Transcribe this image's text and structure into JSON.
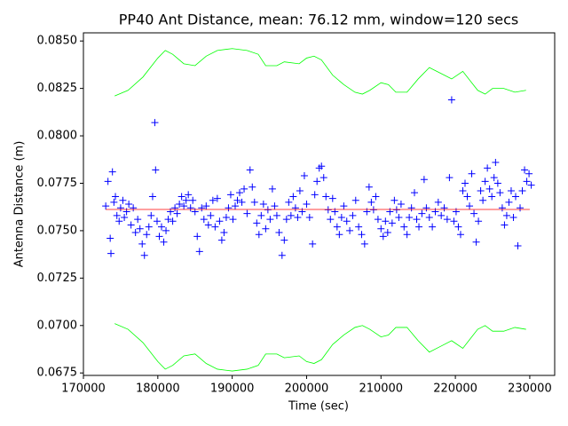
{
  "chart_data": {
    "type": "scatter",
    "title": "PP40 Ant Distance, mean: 76.12 mm, window=120 secs",
    "xlabel": "Time (sec)",
    "ylabel": "Antenna Distance (m)",
    "xlim": [
      170000,
      233350
    ],
    "ylim": [
      0.06737,
      0.08543
    ],
    "xticks": [
      170000,
      180000,
      190000,
      200000,
      210000,
      220000,
      230000
    ],
    "yticks": [
      0.0675,
      {
        "value": 0.07,
        "label": "0.0700"
      },
      0.0725,
      {
        "value": 0.075,
        "label": "0.0750"
      },
      0.0775,
      {
        "value": 0.08,
        "label": "0.0800"
      },
      0.0825,
      {
        "value": 0.085,
        "label": "0.0850"
      }
    ],
    "series": [
      {
        "color": "#0000ff",
        "marker": "+",
        "x": [
          173000,
          173300,
          173600,
          173700,
          173900,
          174100,
          174300,
          174500,
          174800,
          175000,
          175300,
          175500,
          175800,
          176100,
          176400,
          176700,
          177000,
          177300,
          177600,
          177900,
          178200,
          178500,
          178800,
          179100,
          179300,
          179600,
          179700,
          179900,
          180200,
          180500,
          180800,
          181100,
          181400,
          181700,
          182000,
          182300,
          182600,
          182900,
          183200,
          183500,
          183800,
          184100,
          184400,
          184700,
          185000,
          185300,
          185600,
          185900,
          186200,
          186500,
          186800,
          187100,
          187400,
          187700,
          188000,
          188300,
          188600,
          188900,
          189200,
          189500,
          189800,
          190100,
          190400,
          190700,
          191000,
          191300,
          191600,
          192000,
          192400,
          192700,
          193000,
          193300,
          193600,
          193900,
          194200,
          194500,
          194800,
          195100,
          195400,
          195700,
          196000,
          196300,
          196700,
          197000,
          197300,
          197600,
          197900,
          198200,
          198500,
          198800,
          199100,
          199400,
          199700,
          200000,
          200400,
          200800,
          201100,
          201400,
          201700,
          202000,
          202300,
          202600,
          202900,
          203200,
          203500,
          203800,
          204100,
          204400,
          204700,
          205000,
          205400,
          205800,
          206200,
          206600,
          207000,
          207400,
          207800,
          208100,
          208400,
          208700,
          209000,
          209300,
          209600,
          210000,
          210300,
          210600,
          210900,
          211200,
          211500,
          211800,
          212100,
          212400,
          212700,
          213100,
          213500,
          213800,
          214100,
          214500,
          214800,
          215100,
          215500,
          215800,
          216100,
          216500,
          216900,
          217300,
          217700,
          218100,
          218500,
          218900,
          219200,
          219500,
          219800,
          220100,
          220400,
          220700,
          221000,
          221300,
          221600,
          221900,
          222200,
          222500,
          222800,
          223100,
          223400,
          223700,
          224000,
          224300,
          224600,
          224900,
          225200,
          225400,
          225700,
          226000,
          226300,
          226600,
          226900,
          227200,
          227500,
          227800,
          228100,
          228400,
          228700,
          229000,
          229300,
          229600,
          229900,
          230200
        ],
        "values": [
          0.0763,
          0.0776,
          0.0746,
          0.0738,
          0.0781,
          0.0765,
          0.0768,
          0.0758,
          0.0755,
          0.0762,
          0.0766,
          0.0757,
          0.076,
          0.0764,
          0.0753,
          0.0762,
          0.0749,
          0.0756,
          0.0751,
          0.0743,
          0.0737,
          0.0748,
          0.0752,
          0.0758,
          0.0768,
          0.0807,
          0.0782,
          0.0755,
          0.0747,
          0.0752,
          0.0744,
          0.075,
          0.0756,
          0.076,
          0.0755,
          0.0762,
          0.0759,
          0.0764,
          0.0768,
          0.0763,
          0.0766,
          0.0769,
          0.0762,
          0.0766,
          0.076,
          0.0747,
          0.0739,
          0.0762,
          0.0756,
          0.0763,
          0.0753,
          0.0758,
          0.0766,
          0.0752,
          0.0767,
          0.0755,
          0.0745,
          0.0749,
          0.0757,
          0.0762,
          0.0769,
          0.0756,
          0.0763,
          0.0766,
          0.077,
          0.0765,
          0.0772,
          0.0759,
          0.0782,
          0.0773,
          0.0765,
          0.0754,
          0.0748,
          0.0758,
          0.0764,
          0.0751,
          0.0761,
          0.0756,
          0.0772,
          0.0763,
          0.0758,
          0.0749,
          0.0737,
          0.0745,
          0.0756,
          0.0765,
          0.0758,
          0.0768,
          0.0762,
          0.0757,
          0.0771,
          0.076,
          0.0779,
          0.0764,
          0.0757,
          0.0743,
          0.0769,
          0.0776,
          0.0783,
          0.0784,
          0.0778,
          0.0768,
          0.0761,
          0.0756,
          0.0767,
          0.076,
          0.0752,
          0.0748,
          0.0757,
          0.0763,
          0.0755,
          0.075,
          0.0758,
          0.0766,
          0.0752,
          0.0748,
          0.0743,
          0.076,
          0.0773,
          0.0765,
          0.0761,
          0.0768,
          0.0756,
          0.0751,
          0.0747,
          0.0755,
          0.0749,
          0.076,
          0.0754,
          0.0766,
          0.0761,
          0.0757,
          0.0764,
          0.0752,
          0.0748,
          0.0757,
          0.0762,
          0.077,
          0.0756,
          0.0752,
          0.0759,
          0.0777,
          0.0762,
          0.0757,
          0.0752,
          0.076,
          0.0765,
          0.0758,
          0.0762,
          0.0756,
          0.0778,
          0.0819,
          0.0755,
          0.076,
          0.0752,
          0.0748,
          0.0771,
          0.0775,
          0.0768,
          0.0763,
          0.078,
          0.0759,
          0.0744,
          0.0755,
          0.0771,
          0.0766,
          0.0776,
          0.0783,
          0.0772,
          0.0768,
          0.0778,
          0.0786,
          0.0775,
          0.077,
          0.0762,
          0.0753,
          0.0758,
          0.0765,
          0.0771,
          0.0757,
          0.0768,
          0.0742,
          0.0762,
          0.0771,
          0.0782,
          0.0776,
          0.078,
          0.0774
        ]
      },
      {
        "color": "#ff0000",
        "x": [
          173000,
          230000
        ],
        "values": [
          0.07612,
          0.07612
        ]
      },
      {
        "color": "#00ff00",
        "x": [
          174200,
          176000,
          178000,
          180000,
          181000,
          182000,
          183500,
          185000,
          186500,
          188000,
          190000,
          192000,
          193500,
          194500,
          196000,
          197000,
          199000,
          200000,
          201000,
          202000,
          203500,
          205000,
          206500,
          207500,
          208500,
          210000,
          211000,
          212000,
          213500,
          215000,
          216500,
          218000,
          219500,
          221000,
          222000,
          223000,
          224000,
          225000,
          226500,
          228000,
          229500
        ],
        "values": [
          0.0821,
          0.0824,
          0.0831,
          0.0841,
          0.0845,
          0.0843,
          0.0838,
          0.0837,
          0.0842,
          0.0845,
          0.0846,
          0.0845,
          0.0843,
          0.0837,
          0.0837,
          0.0839,
          0.0838,
          0.0841,
          0.0842,
          0.084,
          0.0832,
          0.0827,
          0.0823,
          0.0822,
          0.0824,
          0.0828,
          0.0827,
          0.0823,
          0.0823,
          0.083,
          0.0836,
          0.0833,
          0.083,
          0.0834,
          0.0829,
          0.0824,
          0.0822,
          0.0825,
          0.0825,
          0.0823,
          0.0824
        ]
      },
      {
        "color": "#00ff00",
        "x": [
          174200,
          176000,
          178000,
          180000,
          181000,
          182000,
          183500,
          185000,
          186500,
          188000,
          190000,
          192000,
          193500,
          194500,
          196000,
          197000,
          199000,
          200000,
          201000,
          202000,
          203500,
          205000,
          206500,
          207500,
          208500,
          210000,
          211000,
          212000,
          213500,
          215000,
          216500,
          218000,
          219500,
          221000,
          222000,
          223000,
          224000,
          225000,
          226500,
          228000,
          229500
        ],
        "values": [
          0.0701,
          0.0698,
          0.0691,
          0.0681,
          0.0677,
          0.0679,
          0.0684,
          0.0685,
          0.068,
          0.0677,
          0.0676,
          0.0677,
          0.0679,
          0.0685,
          0.0685,
          0.0683,
          0.0684,
          0.0681,
          0.068,
          0.0682,
          0.069,
          0.0695,
          0.0699,
          0.07,
          0.0698,
          0.0694,
          0.0695,
          0.0699,
          0.0699,
          0.0692,
          0.0686,
          0.0689,
          0.0692,
          0.0688,
          0.0693,
          0.0698,
          0.07,
          0.0697,
          0.0697,
          0.0699,
          0.0698
        ]
      }
    ]
  }
}
